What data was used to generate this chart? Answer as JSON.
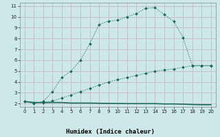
{
  "xlabel": "Humidex (Indice chaleur)",
  "bg_color": "#cce8e8",
  "plot_bg_color": "#cce8e8",
  "grid_color": "#c8b8c8",
  "line_color": "#1a6b5a",
  "x_upper": [
    0,
    1,
    2,
    3,
    4,
    5,
    6,
    7,
    8,
    9,
    10,
    11,
    12,
    13,
    14,
    15,
    16,
    17,
    18,
    19,
    20
  ],
  "y_upper": [
    2.2,
    2.0,
    2.2,
    3.1,
    4.4,
    5.0,
    6.0,
    7.5,
    9.3,
    9.6,
    9.7,
    10.0,
    10.3,
    10.8,
    10.85,
    10.2,
    9.6,
    8.1,
    5.5,
    5.5,
    5.5
  ],
  "x_middle": [
    0,
    1,
    2,
    3,
    4,
    5,
    6,
    7,
    8,
    9,
    10,
    11,
    12,
    13,
    14,
    15,
    16,
    17,
    18,
    19,
    20
  ],
  "y_middle": [
    2.2,
    2.1,
    2.1,
    2.25,
    2.5,
    2.8,
    3.1,
    3.4,
    3.7,
    4.0,
    4.2,
    4.4,
    4.6,
    4.8,
    5.0,
    5.1,
    5.2,
    5.35,
    5.5,
    5.5,
    5.5
  ],
  "x_lower": [
    0,
    1,
    2,
    3,
    4,
    5,
    6,
    7,
    8,
    9,
    10,
    11,
    12,
    13,
    14,
    15,
    16,
    17,
    18,
    19,
    20
  ],
  "y_lower": [
    2.2,
    2.1,
    2.1,
    2.1,
    2.1,
    2.05,
    2.05,
    2.05,
    2.03,
    2.02,
    2.01,
    2.0,
    2.0,
    2.0,
    2.0,
    1.97,
    1.97,
    1.95,
    1.92,
    1.9,
    1.9
  ],
  "ylim": [
    1.7,
    11.3
  ],
  "xlim": [
    -0.5,
    20.5
  ],
  "yticks": [
    2,
    3,
    4,
    5,
    6,
    7,
    8,
    9,
    10,
    11
  ],
  "xticks": [
    0,
    1,
    2,
    3,
    4,
    5,
    6,
    7,
    8,
    9,
    10,
    11,
    12,
    13,
    14,
    15,
    16,
    17,
    18,
    19,
    20
  ],
  "xlabel_bg": "#2a5a7a",
  "xlabel_color": "#ffffff"
}
